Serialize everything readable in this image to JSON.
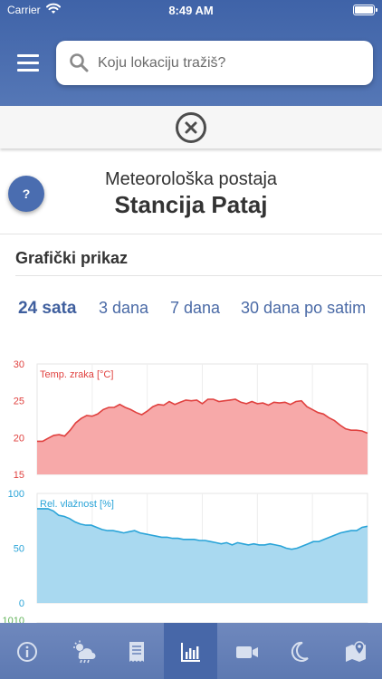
{
  "status_bar": {
    "carrier": "Carrier",
    "time": "8:49 AM"
  },
  "search": {
    "placeholder": "Koju lokaciju tražiš?"
  },
  "station": {
    "subtitle": "Meteorološka postaja",
    "name": "Stancija Pataj"
  },
  "help_label": "?",
  "section_title": "Grafički prikaz",
  "range_tabs": [
    {
      "label": "24 sata",
      "active": true
    },
    {
      "label": "3 dana",
      "active": false
    },
    {
      "label": "7 dana",
      "active": false
    },
    {
      "label": "30 dana po satim",
      "active": false
    }
  ],
  "tab_bar": {
    "items": [
      {
        "icon": "info-icon",
        "active": false
      },
      {
        "icon": "weather-rain-icon",
        "active": false
      },
      {
        "icon": "receipt-list-icon",
        "active": false
      },
      {
        "icon": "bar-chart-icon",
        "active": true
      },
      {
        "icon": "video-camera-icon",
        "active": false
      },
      {
        "icon": "moon-icon",
        "active": false
      },
      {
        "icon": "map-pin-icon",
        "active": false
      }
    ]
  },
  "colors": {
    "header": "#4a6db0",
    "temperature": "#e0413f",
    "temperature_fill": "#f7a9a9",
    "humidity": "#2aa4d8",
    "humidity_fill": "#a9d9f0",
    "pressure": "#5fb257"
  },
  "chart_data": [
    {
      "type": "area",
      "series": [
        {
          "name": "Temp. zraka [°C]",
          "values": [
            19.5,
            19.5,
            19.9,
            20.3,
            20.4,
            20.2,
            21.0,
            22.0,
            22.6,
            23.0,
            22.9,
            23.2,
            23.8,
            24.1,
            24.1,
            24.5,
            24.1,
            23.8,
            23.4,
            23.1,
            23.6,
            24.2,
            24.5,
            24.4,
            24.9,
            24.5,
            24.8,
            25.1,
            25.0,
            25.1,
            24.6,
            25.2,
            25.2,
            24.9,
            25.0,
            25.1,
            25.2,
            24.8,
            24.6,
            24.9,
            24.6,
            24.7,
            24.4,
            24.8,
            24.7,
            24.8,
            24.5,
            24.9,
            25.0,
            24.2,
            23.8,
            23.4,
            23.2,
            22.7,
            22.3,
            21.7,
            21.2,
            21.0,
            21.0,
            20.9,
            20.6
          ]
        }
      ],
      "ylim": [
        15,
        30
      ],
      "ytick_labels": [
        "30",
        "25",
        "20",
        "15"
      ],
      "grid": true
    },
    {
      "type": "area",
      "series": [
        {
          "name": "Rel. vlažnost [%]",
          "values": [
            86,
            86,
            86,
            84,
            80,
            79,
            77,
            74,
            72,
            71,
            71,
            69,
            67,
            66,
            66,
            65,
            64,
            65,
            66,
            64,
            63,
            62,
            61,
            60,
            60,
            59,
            59,
            58,
            58,
            58,
            57,
            57,
            56,
            55,
            54,
            55,
            53,
            55,
            54,
            53,
            54,
            53,
            53,
            54,
            53,
            52,
            50,
            49,
            50,
            52,
            54,
            56,
            56,
            58,
            60,
            62,
            64,
            65,
            66,
            66,
            69,
            70
          ]
        }
      ],
      "ylim": [
        0,
        100
      ],
      "ytick_labels": [
        "100",
        "50",
        "0"
      ],
      "grid": true
    },
    {
      "type": "area",
      "series": [
        {
          "name": "",
          "values": []
        }
      ],
      "ytick_labels": [
        "1010"
      ],
      "grid": true
    }
  ]
}
